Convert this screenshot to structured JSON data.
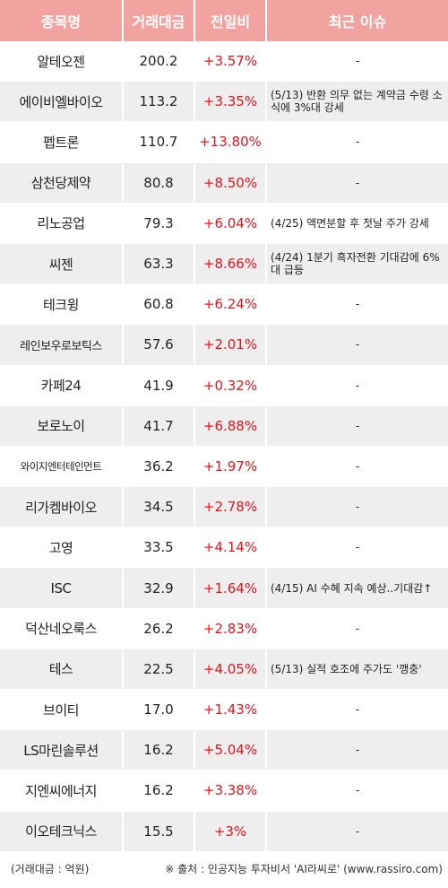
{
  "header": {
    "col_name": "종목명",
    "col_amount": "거래대금",
    "col_change": "전일비",
    "col_issue": "최근 이슈"
  },
  "rows": [
    {
      "name": "알테오젠",
      "amount": "200.2",
      "change": "+3.57%",
      "issue": "-"
    },
    {
      "name": "에이비엘바이오",
      "amount": "113.2",
      "change": "+3.35%",
      "issue": "(5/13) 반환 의무 없는 계약금 수령 소식에 3%대 강세"
    },
    {
      "name": "펩트론",
      "amount": "110.7",
      "change": "+13.80%",
      "issue": "-"
    },
    {
      "name": "삼천당제약",
      "amount": "80.8",
      "change": "+8.50%",
      "issue": "-"
    },
    {
      "name": "리노공업",
      "amount": "79.3",
      "change": "+6.04%",
      "issue": "(4/25) 액면분할 후 첫날 주가 강세"
    },
    {
      "name": "씨젠",
      "amount": "63.3",
      "change": "+8.66%",
      "issue": "(4/24) 1분기 흑자전환 기대감에 6%대 급등"
    },
    {
      "name": "테크윙",
      "amount": "60.8",
      "change": "+6.24%",
      "issue": "-"
    },
    {
      "name": "레인보우로보틱스",
      "amount": "57.6",
      "change": "+2.01%",
      "issue": "-"
    },
    {
      "name": "카페24",
      "amount": "41.9",
      "change": "+0.32%",
      "issue": "-"
    },
    {
      "name": "보로노이",
      "amount": "41.7",
      "change": "+6.88%",
      "issue": "-"
    },
    {
      "name": "와이지엔터테인먼트",
      "amount": "36.2",
      "change": "+1.97%",
      "issue": "-"
    },
    {
      "name": "리가켐바이오",
      "amount": "34.5",
      "change": "+2.78%",
      "issue": "-"
    },
    {
      "name": "고영",
      "amount": "33.5",
      "change": "+4.14%",
      "issue": "-"
    },
    {
      "name": "ISC",
      "amount": "32.9",
      "change": "+1.64%",
      "issue": "(4/15) AI 수혜 지속 예상..기대감↑"
    },
    {
      "name": "덕산네오룩스",
      "amount": "26.2",
      "change": "+2.83%",
      "issue": "-"
    },
    {
      "name": "테스",
      "amount": "22.5",
      "change": "+4.05%",
      "issue": "(5/13) 실적 호조에 주가도 '깽충'"
    },
    {
      "name": "브이티",
      "amount": "17.0",
      "change": "+1.43%",
      "issue": "-"
    },
    {
      "name": "LS마린솔루션",
      "amount": "16.2",
      "change": "+5.04%",
      "issue": "-"
    },
    {
      "name": "지엔씨에너지",
      "amount": "16.2",
      "change": "+3.38%",
      "issue": "-"
    },
    {
      "name": "이오테크닉스",
      "amount": "15.5",
      "change": "+3%",
      "issue": "-"
    }
  ],
  "footer": {
    "unit_note": "(거래대금 : 억원)",
    "source_note": "※ 출처 : 인공지능 투자비서 'AI라씨로' (www.rassiro.com)"
  },
  "colors": {
    "header_bg": "#f2a39f",
    "stripe_bg": "#eeeeee",
    "change_color": "#e8121d"
  }
}
